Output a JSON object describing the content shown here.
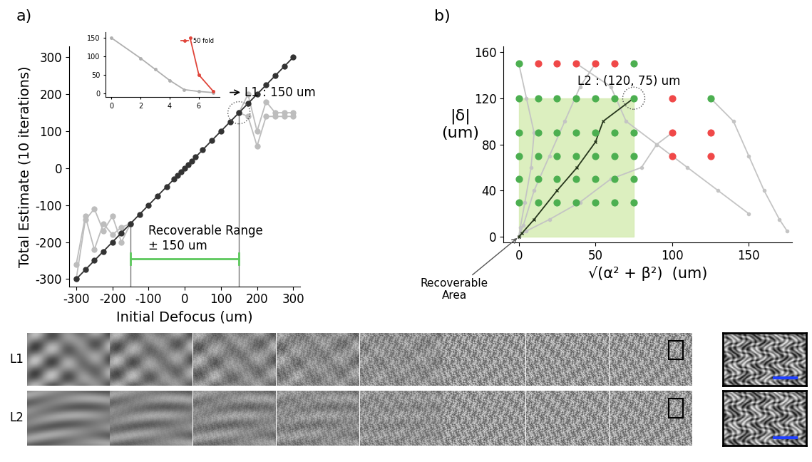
{
  "chart_data": [
    {
      "type": "line",
      "title": "a)",
      "x_label": "Initial Defocus (um)",
      "y_label": "Total Estimate (10 iterations)",
      "xlim": [
        -320,
        320
      ],
      "ylim": [
        -320,
        330
      ],
      "xticks": [
        -300,
        -200,
        -100,
        0,
        100,
        200,
        300
      ],
      "yticks": [
        -300,
        -200,
        -100,
        0,
        100,
        200,
        300
      ],
      "series": [
        {
          "color": "#bdbdbd",
          "marker": "circle",
          "line_style": "solid",
          "x": [
            150,
            175,
            200,
            225,
            250,
            275,
            300
          ],
          "values": [
            150,
            140,
            60,
            140,
            140,
            140,
            140
          ]
        },
        {
          "color": "#bdbdbd",
          "marker": "circle",
          "line_style": "solid",
          "x": [
            150,
            175,
            200,
            225,
            250,
            275,
            300
          ],
          "values": [
            150,
            200,
            100,
            180,
            150,
            150,
            150
          ]
        },
        {
          "color": "#bdbdbd",
          "marker": "circle",
          "line_style": "solid",
          "x": [
            -300,
            -275,
            -250,
            -225,
            -200,
            -175,
            -150
          ],
          "values": [
            -300,
            -140,
            -110,
            -170,
            -130,
            -200,
            -150
          ]
        },
        {
          "color": "#bdbdbd",
          "marker": "circle",
          "line_style": "solid",
          "x": [
            -300,
            -275,
            -250,
            -225,
            -200,
            -175,
            -150
          ],
          "values": [
            -260,
            -130,
            -220,
            -150,
            -180,
            -160,
            -150
          ]
        },
        {
          "color": "#333333",
          "marker": "circle",
          "line_style": "solid",
          "x": [
            -300,
            -275,
            -250,
            -225,
            -200,
            -175,
            -150,
            -125,
            -100,
            -75,
            -50,
            -30,
            -20,
            -10,
            0,
            10,
            20,
            30,
            50,
            75,
            100,
            125,
            150,
            175,
            200,
            225,
            250,
            275,
            300
          ],
          "values": [
            -300,
            -275,
            -250,
            -225,
            -200,
            -175,
            -150,
            -125,
            -100,
            -75,
            -50,
            -30,
            -20,
            -10,
            0,
            10,
            20,
            30,
            50,
            75,
            100,
            125,
            150,
            175,
            200,
            225,
            250,
            275,
            300
          ]
        }
      ],
      "annotations": [
        {
          "text": "L1 : 150 um",
          "x": 150,
          "y": 150
        },
        {
          "text": "Recoverable Range\n± 150 um",
          "x_from": -150,
          "x_to": 150,
          "color": "#5cc85c"
        }
      ],
      "inset": {
        "type": "line",
        "xlim": [
          -0.4,
          7.4
        ],
        "ylim": [
          -10,
          165
        ],
        "xticks": [
          0,
          2,
          4,
          6
        ],
        "yticks": [
          0,
          50,
          100,
          150
        ],
        "legend": "upper right",
        "series": [
          {
            "color": "#b0b0b0",
            "marker": "circle",
            "line_style": "solid",
            "x": [
              0,
              2,
              3,
              4,
              5,
              6,
              7
            ],
            "values": [
              150,
              95,
              65,
              35,
              10,
              5,
              2
            ]
          },
          {
            "name": "50 fold",
            "color": "#e0453a",
            "marker": "circle",
            "line_style": "solid",
            "x": [
              5.4,
              6,
              7
            ],
            "values": [
              150,
              50,
              5
            ]
          }
        ]
      }
    },
    {
      "type": "scatter",
      "title": "b)",
      "x_label": "√(α² + β²)  (um)",
      "y_label": "|δ|\n(um)",
      "xlim": [
        -10,
        178
      ],
      "ylim": [
        -5,
        165
      ],
      "xticks": [
        0,
        50,
        100,
        150
      ],
      "yticks": [
        0,
        40,
        80,
        120,
        160
      ],
      "recoverable_area": {
        "label": "Recoverable\nArea",
        "x": [
          0,
          75
        ],
        "y": [
          0,
          120
        ],
        "color": "#d4ebb0"
      },
      "series": [
        {
          "type": "line",
          "color": "#c4c4c4",
          "marker": "circle",
          "line_style": "solid",
          "x": [
            125,
            140,
            150,
            160,
            170,
            175
          ],
          "values": [
            120,
            100,
            70,
            40,
            15,
            5
          ]
        },
        {
          "type": "line",
          "color": "#c4c4c4",
          "marker": "circle",
          "line_style": "solid",
          "x": [
            100,
            90,
            80,
            60,
            40,
            20,
            5,
            0
          ],
          "values": [
            90,
            80,
            60,
            50,
            30,
            15,
            5,
            0
          ]
        },
        {
          "type": "line",
          "color": "#c4c4c4",
          "marker": "circle",
          "line_style": "solid",
          "x": [
            50,
            40,
            30,
            20,
            10,
            3,
            0
          ],
          "values": [
            150,
            130,
            100,
            70,
            40,
            10,
            0
          ]
        },
        {
          "type": "line",
          "color": "#c4c4c4",
          "marker": "circle",
          "line_style": "solid",
          "x": [
            0,
            5,
            10,
            8,
            4,
            1,
            0
          ],
          "values": [
            150,
            120,
            90,
            60,
            30,
            8,
            0
          ]
        },
        {
          "type": "line",
          "color": "#c4c4c4",
          "marker": "circle",
          "line_style": "solid",
          "x": [
            37.5,
            60,
            70,
            90,
            110,
            130,
            150
          ],
          "values": [
            150,
            130,
            100,
            80,
            60,
            40,
            20
          ]
        },
        {
          "type": "scatter",
          "color": "#4caf50",
          "marker": "circle",
          "x": [
            0,
            75,
            0,
            12.5,
            25,
            37.5,
            50,
            62.5,
            75,
            125,
            0,
            12.5,
            25,
            37.5,
            50,
            62.5,
            75,
            0,
            12.5,
            25,
            37.5,
            50,
            62.5,
            75,
            0,
            12.5,
            25,
            37.5,
            50,
            62.5,
            75,
            0,
            12.5,
            25,
            37.5,
            50,
            62.5,
            75
          ],
          "values": [
            150,
            150,
            120,
            120,
            120,
            120,
            120,
            120,
            120,
            120,
            90,
            90,
            90,
            90,
            90,
            90,
            90,
            70,
            70,
            70,
            70,
            70,
            70,
            70,
            50,
            50,
            50,
            50,
            50,
            50,
            50,
            30,
            30,
            30,
            30,
            30,
            30,
            30
          ]
        },
        {
          "type": "scatter",
          "color": "#f04848",
          "marker": "circle",
          "x": [
            12.5,
            25,
            37.5,
            50,
            62.5,
            100,
            100,
            125,
            100,
            125
          ],
          "values": [
            150,
            150,
            150,
            150,
            150,
            120,
            90,
            90,
            70,
            70
          ]
        },
        {
          "type": "line",
          "color": "#26361c",
          "marker": "x",
          "line_style": "solid",
          "x": [
            75,
            55,
            50,
            38,
            25,
            10,
            2,
            0
          ],
          "values": [
            120,
            100,
            82,
            60,
            40,
            15,
            3,
            0
          ]
        }
      ],
      "annotations": [
        {
          "text": "L2 : (120, 75) um",
          "x": 75,
          "y": 120
        }
      ]
    }
  ],
  "image_strip": {
    "rows": [
      "L1",
      "L2"
    ]
  }
}
